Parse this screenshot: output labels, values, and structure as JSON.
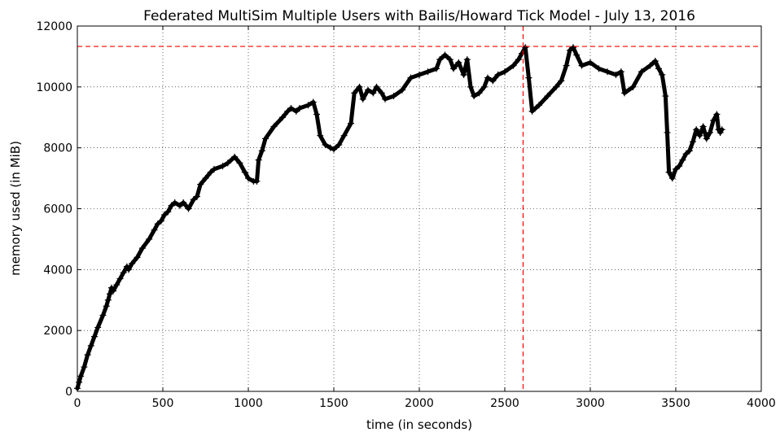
{
  "chart_data": {
    "type": "line",
    "title": "Federated MultiSim Multiple Users with Bailis/Howard Tick Model - July 13, 2016",
    "xlabel": "time (in seconds)",
    "ylabel": "memory used (in MiB)",
    "xlim": [
      0,
      4000
    ],
    "ylim": [
      0,
      12000
    ],
    "xticks": [
      0,
      500,
      1000,
      1500,
      2000,
      2500,
      3000,
      3500,
      4000
    ],
    "yticks": [
      0,
      2000,
      4000,
      6000,
      8000,
      10000,
      12000
    ],
    "grid": true,
    "marker": "+",
    "colors": {
      "series": "#000000",
      "reference": "#ff0000"
    },
    "reference_lines": {
      "horizontal_y": 11330,
      "vertical_x": 2607,
      "style": "dashed"
    },
    "series": [
      {
        "x": [
          0,
          10,
          20,
          40,
          60,
          80,
          100,
          120,
          150,
          170,
          180,
          190,
          200,
          210,
          230,
          250,
          270,
          290,
          300,
          320,
          350,
          380,
          420,
          450,
          470,
          490,
          510,
          530,
          550,
          570,
          600,
          620,
          650,
          680,
          700,
          720,
          750,
          780,
          800,
          850,
          880,
          920,
          950,
          980,
          1000,
          1030,
          1050,
          1060,
          1080,
          1100,
          1150,
          1200,
          1230,
          1250,
          1280,
          1300,
          1350,
          1380,
          1400,
          1420,
          1450,
          1480,
          1500,
          1530,
          1560,
          1600,
          1620,
          1650,
          1670,
          1700,
          1730,
          1750,
          1780,
          1800,
          1850,
          1900,
          1950,
          2000,
          2050,
          2100,
          2120,
          2150,
          2180,
          2200,
          2230,
          2260,
          2280,
          2300,
          2320,
          2350,
          2380,
          2400,
          2430,
          2460,
          2500,
          2550,
          2580,
          2600,
          2620,
          2640,
          2660,
          2700,
          2750,
          2800,
          2830,
          2860,
          2880,
          2900,
          2920,
          2950,
          3000,
          3050,
          3100,
          3150,
          3180,
          3200,
          3250,
          3300,
          3350,
          3380,
          3400,
          3420,
          3440,
          3450,
          3460,
          3480,
          3500,
          3520,
          3540,
          3560,
          3580,
          3600,
          3620,
          3640,
          3660,
          3680,
          3700,
          3720,
          3740,
          3750,
          3760,
          3770
        ],
        "y": [
          100,
          300,
          500,
          800,
          1200,
          1500,
          1800,
          2100,
          2500,
          2800,
          3000,
          3200,
          3400,
          3300,
          3500,
          3700,
          3900,
          4100,
          4000,
          4200,
          4400,
          4700,
          5000,
          5300,
          5500,
          5600,
          5800,
          5900,
          6100,
          6200,
          6100,
          6200,
          6000,
          6300,
          6400,
          6800,
          7000,
          7200,
          7300,
          7400,
          7500,
          7700,
          7500,
          7200,
          7000,
          6900,
          6900,
          7600,
          7900,
          8300,
          8700,
          9000,
          9200,
          9300,
          9200,
          9300,
          9400,
          9500,
          9100,
          8400,
          8100,
          8000,
          7950,
          8100,
          8400,
          8800,
          9800,
          10000,
          9600,
          9900,
          9800,
          10000,
          9800,
          9600,
          9700,
          9900,
          10300,
          10400,
          10500,
          10600,
          10900,
          11050,
          10900,
          10600,
          10800,
          10400,
          10900,
          10000,
          9700,
          9800,
          10000,
          10300,
          10200,
          10400,
          10500,
          10700,
          10900,
          11100,
          11300,
          10300,
          9200,
          9400,
          9700,
          10000,
          10200,
          10700,
          11200,
          11300,
          11050,
          10700,
          10800,
          10600,
          10500,
          10400,
          10500,
          9800,
          10000,
          10500,
          10700,
          10850,
          10600,
          10400,
          9700,
          8500,
          7200,
          7000,
          7300,
          7400,
          7600,
          7800,
          7900,
          8200,
          8600,
          8400,
          8700,
          8300,
          8500,
          8900,
          9100,
          8600,
          8500,
          8600
        ]
      }
    ]
  }
}
